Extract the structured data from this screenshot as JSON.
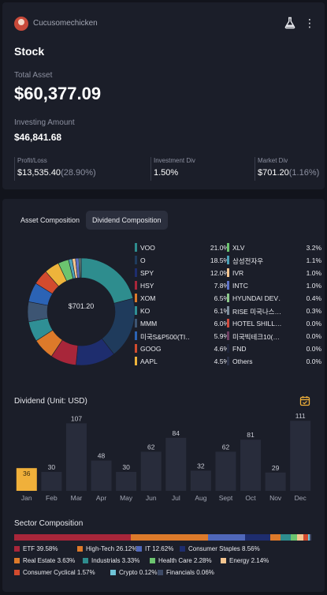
{
  "header": {
    "username": "Cucusomechicken"
  },
  "page": {
    "title": "Stock"
  },
  "summary": {
    "total_asset_label": "Total Asset",
    "total_asset_value": "$60,377.09",
    "investing_amount_label": "Investing Amount",
    "investing_amount_value": "$46,841.68"
  },
  "stats": {
    "profit_loss": {
      "label": "Profit/Loss",
      "value": "$13,535.40",
      "sub": "(28.90%)"
    },
    "investment_div": {
      "label": "Investment Div",
      "value": "1.50%"
    },
    "market_div": {
      "label": "Market Div",
      "value": "$701.20",
      "sub": "(1.16%)"
    }
  },
  "tabs": {
    "asset": "Asset Composition",
    "dividend": "Dividend Composition"
  },
  "donut": {
    "center_label": "$701.20",
    "slices": [
      {
        "name": "VOO",
        "value": 21.0,
        "pct": "21.0%",
        "color": "#2e8d8e"
      },
      {
        "name": "O",
        "value": 18.5,
        "pct": "18.5%",
        "color": "#1f3b5c"
      },
      {
        "name": "SPY",
        "value": 12.0,
        "pct": "12.0%",
        "color": "#1e2d6e"
      },
      {
        "name": "HSY",
        "value": 7.8,
        "pct": "7.8%",
        "color": "#a8263a"
      },
      {
        "name": "XOM",
        "value": 6.5,
        "pct": "6.5%",
        "color": "#dd7a2a"
      },
      {
        "name": "KO",
        "value": 6.1,
        "pct": "6.1%",
        "color": "#2f8f95"
      },
      {
        "name": "MMM",
        "value": 6.0,
        "pct": "6.0%",
        "color": "#3d5573"
      },
      {
        "name": "미국S&P500(TI…",
        "value": 5.9,
        "pct": "5.9%",
        "color": "#2b63b5"
      },
      {
        "name": "GOOG",
        "value": 4.6,
        "pct": "4.6%",
        "color": "#d24b2e"
      },
      {
        "name": "AAPL",
        "value": 4.5,
        "pct": "4.5%",
        "color": "#eeb43b"
      },
      {
        "name": "XLV",
        "value": 3.2,
        "pct": "3.2%",
        "color": "#6cc46f"
      },
      {
        "name": "삼성전자우",
        "value": 1.1,
        "pct": "1.1%",
        "color": "#4aa1b7"
      },
      {
        "name": "IVR",
        "value": 1.0,
        "pct": "1.0%",
        "color": "#f5c58f"
      },
      {
        "name": "INTC",
        "value": 1.0,
        "pct": "1.0%",
        "color": "#5f73c9"
      },
      {
        "name": "HYUNDAI DEV…",
        "value": 0.4,
        "pct": "0.4%",
        "color": "#8cc98a"
      },
      {
        "name": "RISE 미국나스…",
        "value": 0.3,
        "pct": "0.3%",
        "color": "#7d8e9c"
      },
      {
        "name": "HOTEL SHILL…",
        "value": 0.0,
        "pct": "0.0%",
        "color": "#d04a3d"
      },
      {
        "name": "미국빅테크10(…",
        "value": 0.0,
        "pct": "0.0%",
        "color": "#6e3f63"
      },
      {
        "name": "FND",
        "value": 0.0,
        "pct": "0.0%",
        "color": "#20263a"
      },
      {
        "name": "Others",
        "value": 0.0,
        "pct": "0.0%",
        "color": "#2a3046"
      }
    ]
  },
  "dividend": {
    "title": "Dividend (Unit: USD)"
  },
  "chart_data": {
    "type": "bar",
    "title": "Dividend (Unit: USD)",
    "categories": [
      "Jan",
      "Feb",
      "Mar",
      "Apr",
      "May",
      "Jun",
      "Jul",
      "Aug",
      "Sept",
      "Oct",
      "Nov",
      "Dec"
    ],
    "values": [
      36,
      30,
      107,
      48,
      30,
      62,
      84,
      32,
      62,
      81,
      29,
      111
    ],
    "highlight_index": 0,
    "ylim": [
      0,
      120
    ],
    "grid": false,
    "bar_color": "#282c3b",
    "highlight_color": "#f0b03a"
  },
  "sector": {
    "title": "Sector Composition",
    "items": [
      {
        "name": "ETF 39.58%",
        "value": 39.58,
        "color": "#a8263a"
      },
      {
        "name": "High-Tech 26.12%",
        "value": 26.12,
        "color": "#dd7a2a"
      },
      {
        "name": "IT 12.62%",
        "value": 12.62,
        "color": "#4f67b9"
      },
      {
        "name": "Consumer Staples 8.56%",
        "value": 8.56,
        "color": "#1e2d6e"
      },
      {
        "name": "Real Estate 3.63%",
        "value": 3.63,
        "color": "#dd7a2a"
      },
      {
        "name": "Industrials 3.33%",
        "value": 3.33,
        "color": "#2e8d8e"
      },
      {
        "name": "Health Care 2.28%",
        "value": 2.28,
        "color": "#6cc46f"
      },
      {
        "name": "Energy 2.14%",
        "value": 2.14,
        "color": "#f5c58f"
      },
      {
        "name": "Consumer Cyclical 1.57%",
        "value": 1.57,
        "color": "#d24b2e"
      },
      {
        "name": "Crypto 0.12%",
        "value": 0.12,
        "color": "#6fc4d8"
      },
      {
        "name": "Financials 0.06%",
        "value": 0.06,
        "color": "#3d4a66"
      }
    ]
  }
}
